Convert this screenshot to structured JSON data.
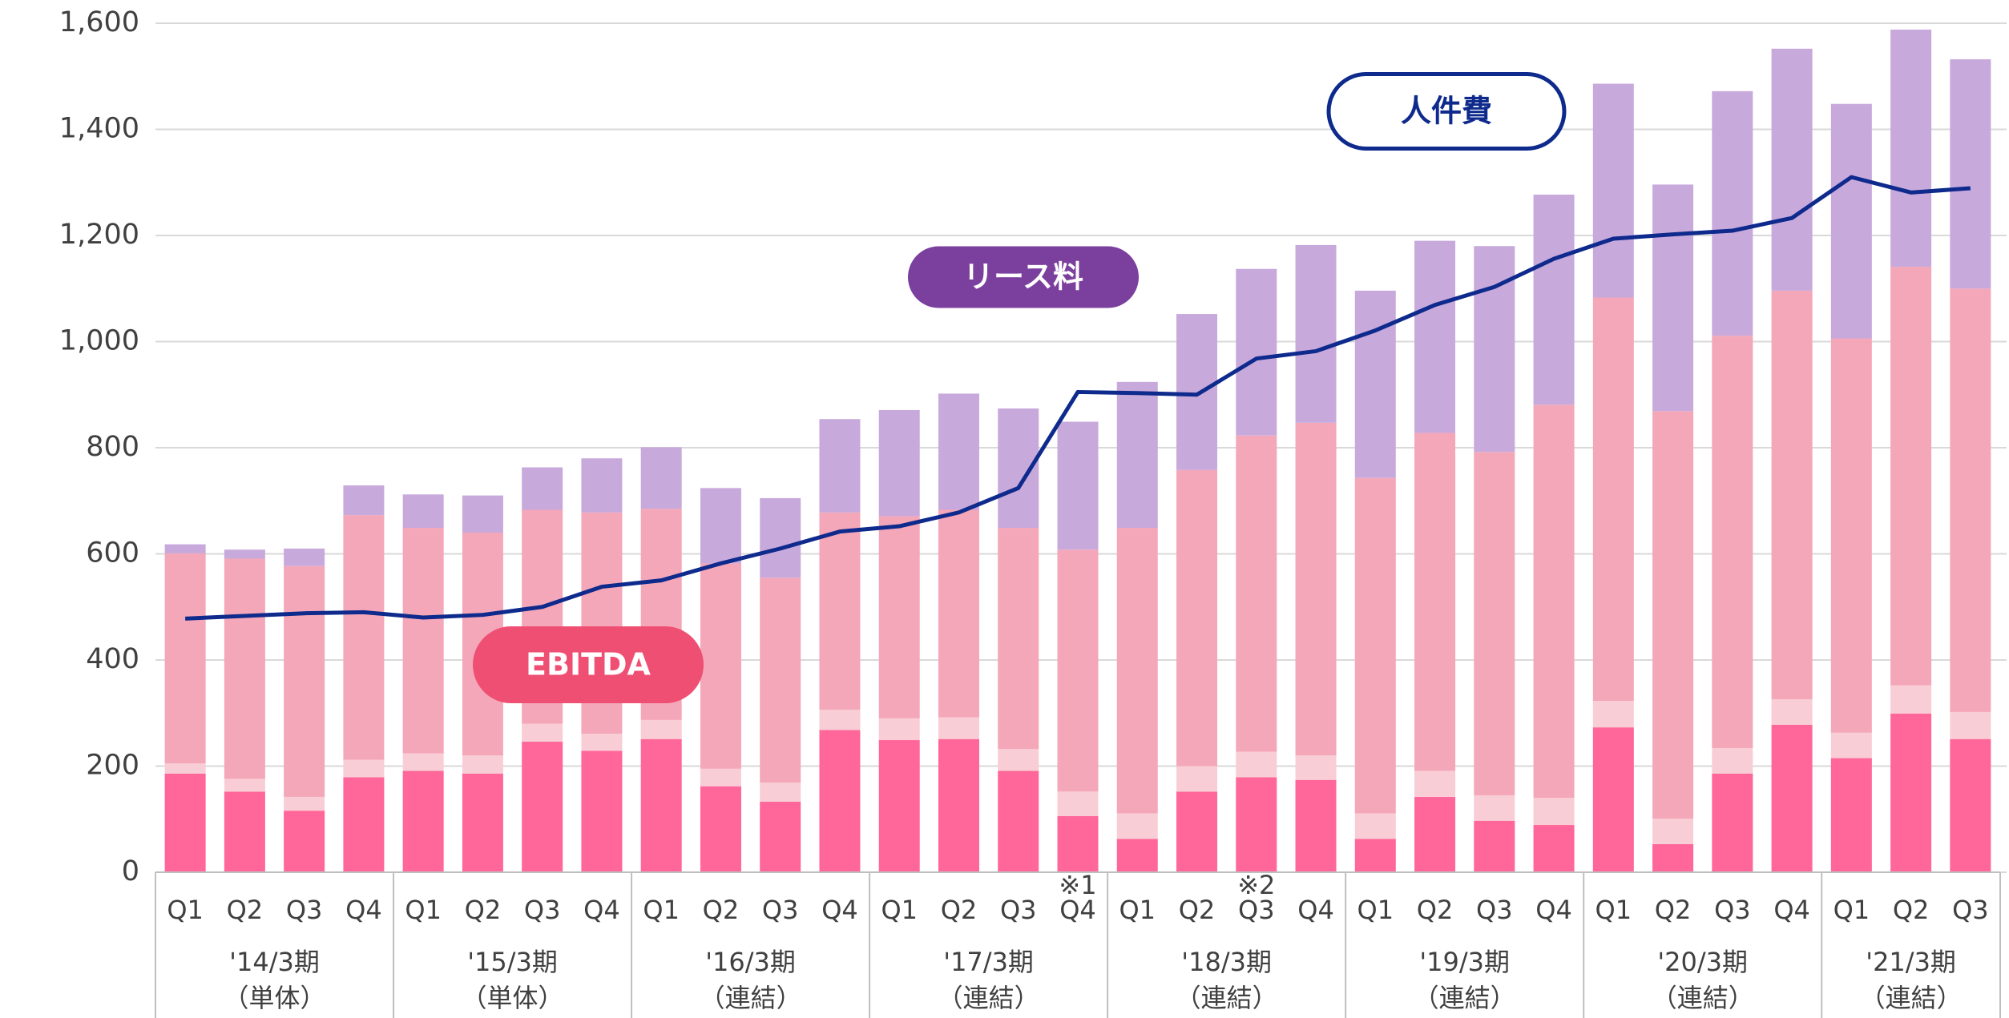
{
  "chart_data": {
    "type": "stacked-bar-line",
    "categories": [
      "Q1",
      "Q2",
      "Q3",
      "Q4",
      "Q1",
      "Q2",
      "Q3",
      "Q4",
      "Q1",
      "Q2",
      "Q3",
      "Q4",
      "Q1",
      "Q2",
      "Q3",
      "Q4",
      "Q1",
      "Q2",
      "Q3",
      "Q4",
      "Q1",
      "Q2",
      "Q3",
      "Q4",
      "Q1",
      "Q2",
      "Q3",
      "Q4",
      "Q1",
      "Q2",
      "Q3"
    ],
    "category_notes": [
      null,
      null,
      null,
      null,
      null,
      null,
      null,
      null,
      null,
      null,
      null,
      null,
      null,
      null,
      null,
      "※1",
      null,
      null,
      "※2",
      null,
      null,
      null,
      null,
      null,
      null,
      null,
      null,
      null,
      null,
      null,
      null
    ],
    "groups": [
      {
        "name": "'14/3期",
        "note": "（単体）"
      },
      {
        "name": "'15/3期",
        "note": "（単体）"
      },
      {
        "name": "'16/3期",
        "note": "（連結）"
      },
      {
        "name": "'17/3期",
        "note": "（連結）"
      },
      {
        "name": "'18/3期",
        "note": "（連結）"
      },
      {
        "name": "'19/3期",
        "note": "（連結）"
      },
      {
        "name": "'20/3期",
        "note": "（連結）"
      },
      {
        "name": "'21/3期",
        "note": "（連結）"
      }
    ],
    "series": [
      {
        "name": "EBITDA",
        "color": "#ff6699",
        "badge_color": "#ee4f73",
        "values": [
          186,
          152,
          116,
          179,
          191,
          186,
          246,
          229,
          251,
          162,
          133,
          268,
          249,
          251,
          191,
          106,
          63,
          152,
          179,
          174,
          63,
          142,
          97,
          89,
          273,
          53,
          186,
          278,
          215,
          299,
          251
        ]
      },
      {
        "color": "#f9cdd6",
        "values": [
          19,
          24,
          26,
          33,
          33,
          34,
          34,
          32,
          36,
          33,
          36,
          38,
          41,
          41,
          41,
          46,
          48,
          48,
          48,
          46,
          48,
          49,
          48,
          51,
          50,
          48,
          48,
          48,
          48,
          53,
          51
        ]
      },
      {
        "color": "#f4a7b8",
        "values": [
          396,
          415,
          435,
          461,
          425,
          420,
          403,
          417,
          398,
          387,
          386,
          372,
          381,
          391,
          417,
          456,
          538,
          558,
          596,
          627,
          632,
          637,
          647,
          741,
          760,
          768,
          777,
          770,
          743,
          789,
          798
        ]
      },
      {
        "name": "リース料",
        "color": "#c8a9dc",
        "badge_color": "#7b3f9e",
        "values": [
          17,
          17,
          33,
          56,
          63,
          70,
          80,
          102,
          116,
          142,
          150,
          176,
          200,
          219,
          225,
          241,
          275,
          294,
          314,
          335,
          353,
          362,
          388,
          396,
          403,
          427,
          461,
          456,
          442,
          447,
          432
        ]
      },
      {
        "name": "人件費",
        "type": "line",
        "color": "#0e2a8c",
        "values": [
          478,
          483,
          488,
          490,
          480,
          485,
          500,
          538,
          550,
          582,
          610,
          642,
          652,
          678,
          724,
          905,
          903,
          900,
          968,
          982,
          1021,
          1069,
          1103,
          1156,
          1194,
          1202,
          1209,
          1233,
          1310,
          1281,
          1289
        ]
      }
    ],
    "ylim": [
      0,
      1600
    ],
    "yticks": [
      0,
      {
        "value": 200,
        "label": "200"
      },
      400,
      600,
      800,
      {
        "value": 1000,
        "label": "1,000"
      },
      {
        "value": 1200,
        "label": "1,200"
      },
      {
        "value": 1400,
        "label": "1,400"
      },
      {
        "value": 1600,
        "label": "1,600"
      }
    ],
    "grid": true
  }
}
